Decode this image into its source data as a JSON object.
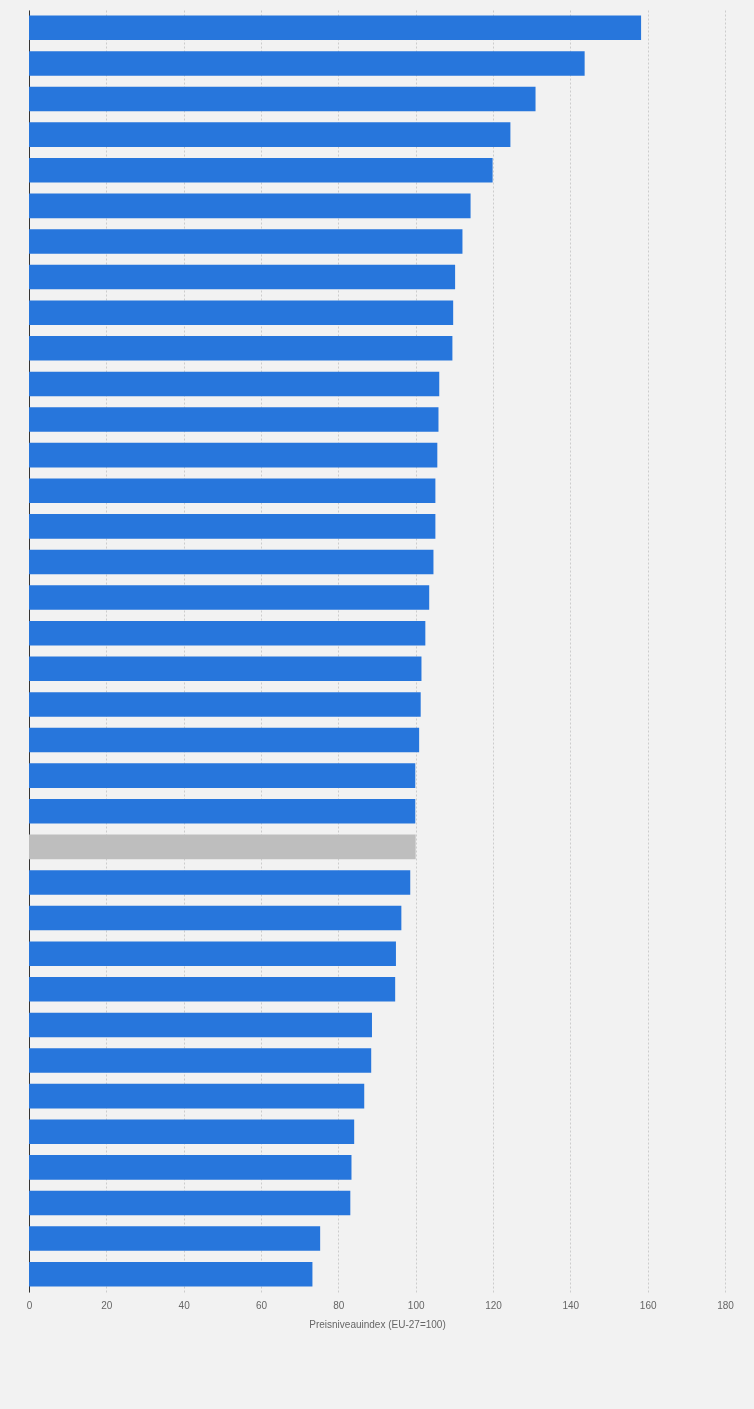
{
  "chart_data": {
    "type": "bar",
    "orientation": "horizontal",
    "categories": [
      null,
      null,
      null,
      null,
      null,
      null,
      null,
      null,
      null,
      null,
      null,
      null,
      null,
      null,
      null,
      null,
      null,
      null,
      null,
      null,
      null,
      null,
      null,
      null,
      null,
      null,
      null,
      null,
      null,
      null,
      null,
      null,
      null,
      null,
      null,
      null
    ],
    "values": [
      158.3,
      143.7,
      131.0,
      124.5,
      119.9,
      114.2,
      112.1,
      110.2,
      109.7,
      109.5,
      106.1,
      105.9,
      105.6,
      105.1,
      105.1,
      104.6,
      103.5,
      102.5,
      101.5,
      101.3,
      100.9,
      99.9,
      99.9,
      100,
      98.6,
      96.3,
      94.9,
      94.7,
      88.7,
      88.5,
      86.7,
      84.1,
      83.4,
      83.1,
      75.3,
      73.3
    ],
    "colors": [
      "#2776dc",
      "#2776dc",
      "#2776dc",
      "#2776dc",
      "#2776dc",
      "#2776dc",
      "#2776dc",
      "#2776dc",
      "#2776dc",
      "#2776dc",
      "#2776dc",
      "#2776dc",
      "#2776dc",
      "#2776dc",
      "#2776dc",
      "#2776dc",
      "#2776dc",
      "#2776dc",
      "#2776dc",
      "#2776dc",
      "#2776dc",
      "#2776dc",
      "#2776dc",
      "#bebebe",
      "#2776dc",
      "#2776dc",
      "#2776dc",
      "#2776dc",
      "#2776dc",
      "#2776dc",
      "#2776dc",
      "#2776dc",
      "#2776dc",
      "#2776dc",
      "#2776dc",
      "#2776dc"
    ],
    "xlabel": "Preisniveauindex (EU-27=100)",
    "xlim": [
      0,
      180
    ],
    "xticks": [
      0,
      20,
      40,
      60,
      80,
      100,
      120,
      140,
      160,
      180
    ],
    "grid": "x",
    "tick_labels": "x"
  }
}
